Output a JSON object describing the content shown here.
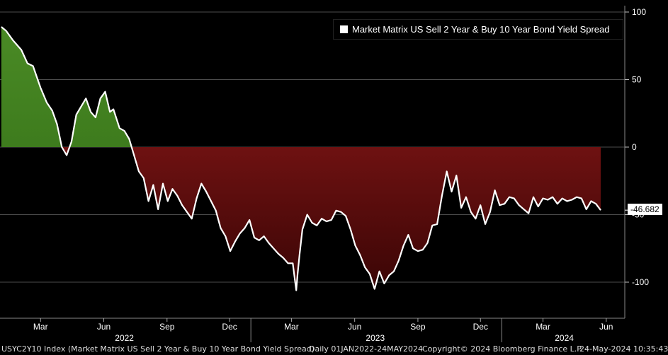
{
  "legend": {
    "label": "Market Matrix US Sell 2 Year & Buy 10 Year Bond Yield Spread"
  },
  "last_value_label": "-46.682",
  "footer": {
    "ticker": "USYC2Y10 Index (Market Matrix US Sell 2 Year & Buy 10 Year Bond Yield Spread)",
    "range": "Daily 01JAN2022-24MAY2024",
    "copyright": "Copyright© 2024 Bloomberg Finance L.P.",
    "timestamp": "24-May-2024 10:35:43"
  },
  "colors": {
    "positive": "#3f7a1f",
    "negative": "#8b1a1a",
    "line": "#ffffff",
    "grid": "#666666"
  },
  "chart_data": {
    "type": "area",
    "title": "",
    "ylabel": "",
    "ylim": [
      -125,
      100
    ],
    "y_ticks": [
      100,
      50,
      0,
      -50,
      -100
    ],
    "y_tick_labels": [
      "100",
      "50",
      "0",
      "-50",
      "-100"
    ],
    "x_month_labels": [
      {
        "label": "Mar",
        "date": "2022-03-01"
      },
      {
        "label": "Jun",
        "date": "2022-06-01"
      },
      {
        "label": "Sep",
        "date": "2022-09-01"
      },
      {
        "label": "Dec",
        "date": "2022-12-01"
      },
      {
        "label": "Mar",
        "date": "2023-03-01"
      },
      {
        "label": "Jun",
        "date": "2023-06-01"
      },
      {
        "label": "Sep",
        "date": "2023-09-01"
      },
      {
        "label": "Dec",
        "date": "2023-12-01"
      },
      {
        "label": "Mar",
        "date": "2024-03-01"
      },
      {
        "label": "Jun",
        "date": "2024-06-01"
      }
    ],
    "x_year_labels": [
      {
        "label": "2022",
        "date": "2022-07-01"
      },
      {
        "label": "2023",
        "date": "2023-07-01"
      },
      {
        "label": "2024",
        "date": "2024-04-01"
      }
    ],
    "series": [
      {
        "name": "Market Matrix US Sell 2 Year & Buy 10 Year Bond Yield Spread",
        "x": [
          "2022-01-03",
          "2022-01-10",
          "2022-01-20",
          "2022-02-01",
          "2022-02-10",
          "2022-02-18",
          "2022-03-01",
          "2022-03-10",
          "2022-03-18",
          "2022-03-25",
          "2022-04-01",
          "2022-04-08",
          "2022-04-15",
          "2022-04-22",
          "2022-04-29",
          "2022-05-06",
          "2022-05-13",
          "2022-05-20",
          "2022-05-27",
          "2022-06-03",
          "2022-06-10",
          "2022-06-15",
          "2022-06-24",
          "2022-07-01",
          "2022-07-08",
          "2022-07-15",
          "2022-07-22",
          "2022-07-29",
          "2022-08-05",
          "2022-08-12",
          "2022-08-19",
          "2022-08-26",
          "2022-09-02",
          "2022-09-09",
          "2022-09-16",
          "2022-09-23",
          "2022-09-30",
          "2022-10-07",
          "2022-10-14",
          "2022-10-21",
          "2022-10-28",
          "2022-11-04",
          "2022-11-11",
          "2022-11-18",
          "2022-11-25",
          "2022-12-02",
          "2022-12-09",
          "2022-12-16",
          "2022-12-23",
          "2022-12-30",
          "2023-01-06",
          "2023-01-13",
          "2023-01-20",
          "2023-01-27",
          "2023-02-03",
          "2023-02-10",
          "2023-02-17",
          "2023-02-24",
          "2023-03-03",
          "2023-03-08",
          "2023-03-10",
          "2023-03-13",
          "2023-03-17",
          "2023-03-24",
          "2023-03-31",
          "2023-04-07",
          "2023-04-14",
          "2023-04-21",
          "2023-04-28",
          "2023-05-05",
          "2023-05-12",
          "2023-05-19",
          "2023-05-26",
          "2023-06-02",
          "2023-06-09",
          "2023-06-16",
          "2023-06-23",
          "2023-06-30",
          "2023-07-07",
          "2023-07-14",
          "2023-07-21",
          "2023-07-28",
          "2023-08-04",
          "2023-08-11",
          "2023-08-18",
          "2023-08-25",
          "2023-09-01",
          "2023-09-08",
          "2023-09-15",
          "2023-09-22",
          "2023-09-29",
          "2023-10-06",
          "2023-10-13",
          "2023-10-20",
          "2023-10-27",
          "2023-11-03",
          "2023-11-10",
          "2023-11-17",
          "2023-11-24",
          "2023-12-01",
          "2023-12-08",
          "2023-12-15",
          "2023-12-22",
          "2023-12-29",
          "2024-01-05",
          "2024-01-12",
          "2024-01-19",
          "2024-01-26",
          "2024-02-02",
          "2024-02-09",
          "2024-02-16",
          "2024-02-23",
          "2024-03-01",
          "2024-03-08",
          "2024-03-15",
          "2024-03-22",
          "2024-03-29",
          "2024-04-05",
          "2024-04-12",
          "2024-04-19",
          "2024-04-26",
          "2024-05-03",
          "2024-05-10",
          "2024-05-17",
          "2024-05-24"
        ],
        "values": [
          89,
          86,
          79,
          72,
          62,
          60,
          44,
          33,
          27,
          17,
          0,
          -6,
          4,
          24,
          30,
          36,
          26,
          22,
          36,
          41,
          26,
          28,
          14,
          12,
          6,
          -6,
          -18,
          -23,
          -40,
          -28,
          -46,
          -27,
          -40,
          -31,
          -36,
          -43,
          -48,
          -53,
          -38,
          -27,
          -33,
          -40,
          -47,
          -60,
          -66,
          -77,
          -70,
          -64,
          -60,
          -54,
          -67,
          -69,
          -66,
          -71,
          -75,
          -79,
          -82,
          -86,
          -86,
          -106,
          -94,
          -79,
          -61,
          -50,
          -56,
          -58,
          -53,
          -55,
          -54,
          -47,
          -48,
          -51,
          -61,
          -73,
          -80,
          -89,
          -94,
          -105,
          -92,
          -101,
          -95,
          -92,
          -84,
          -73,
          -65,
          -75,
          -77,
          -76,
          -71,
          -58,
          -57,
          -36,
          -18,
          -33,
          -21,
          -45,
          -37,
          -48,
          -53,
          -43,
          -57,
          -48,
          -32,
          -43,
          -42,
          -37,
          -38,
          -43,
          -46,
          -49,
          -37,
          -44,
          -38,
          -39,
          -37,
          -42,
          -38,
          -40,
          -39,
          -37,
          -38,
          -46,
          -40,
          -42,
          -46.682
        ]
      }
    ]
  }
}
